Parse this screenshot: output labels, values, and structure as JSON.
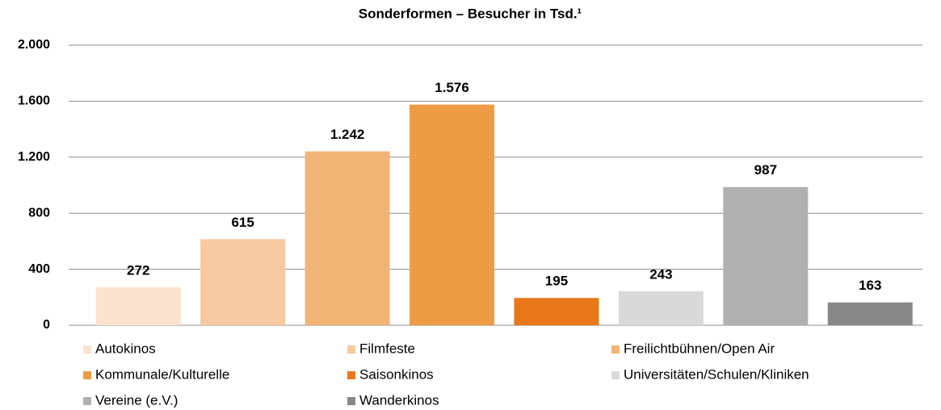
{
  "chart_data": {
    "type": "bar",
    "title": "Sonderformen – Besucher in Tsd.¹",
    "series": [
      {
        "name": "Autokinos",
        "color": "#FBE3D0",
        "values": [
          272
        ]
      },
      {
        "name": "Filmfeste",
        "color": "#F6C9A0",
        "values": [
          615
        ]
      },
      {
        "name": "Freilichtbühnen/Open Air",
        "color": "#F1B477",
        "values": [
          1242
        ],
        "value_labels": [
          "1.242"
        ]
      },
      {
        "name": "Kommunale/Kulturelle",
        "color": "#EE9B45",
        "values": [
          1576
        ],
        "value_labels": [
          "1.576"
        ]
      },
      {
        "name": "Saisonkinos",
        "color": "#E8781A",
        "values": [
          195
        ]
      },
      {
        "name": "Universitäten/Schulen/Kliniken",
        "color": "#D9D9D9",
        "values": [
          243
        ]
      },
      {
        "name": "Vereine (e.V.)",
        "color": "#B0B0B0",
        "values": [
          987
        ]
      },
      {
        "name": "Wanderkinos",
        "color": "#878787",
        "values": [
          163
        ]
      }
    ],
    "ylim": [
      0,
      2000
    ],
    "yticks": [
      0,
      400,
      800,
      {
        "value": 1200,
        "label": "1.200"
      },
      {
        "value": 1600,
        "label": "1.600"
      },
      {
        "value": 2000,
        "label": "2.000"
      }
    ],
    "grid": true,
    "legend": "bottom"
  }
}
